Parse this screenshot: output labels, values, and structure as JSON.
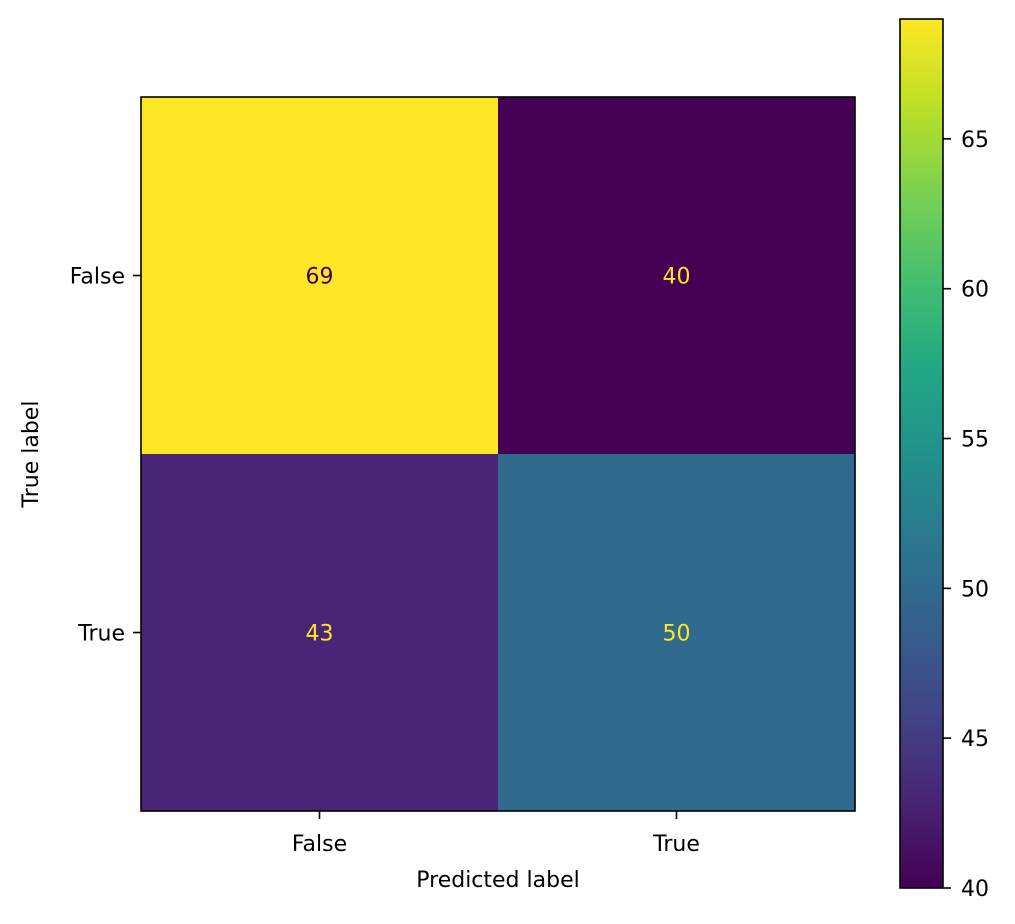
{
  "chart_data": {
    "type": "heatmap",
    "title": "",
    "xlabel": "Predicted label",
    "ylabel": "True label",
    "x_categories": [
      "False",
      "True"
    ],
    "y_categories": [
      "False",
      "True"
    ],
    "values": [
      [
        69,
        40
      ],
      [
        43,
        50
      ]
    ],
    "colormap": "viridis",
    "colorbar": {
      "range": [
        40,
        69
      ],
      "ticks": [
        40,
        45,
        50,
        55,
        60,
        65
      ]
    },
    "text_colors": {
      "on_light": "#440154",
      "on_dark": "#fde725"
    }
  }
}
